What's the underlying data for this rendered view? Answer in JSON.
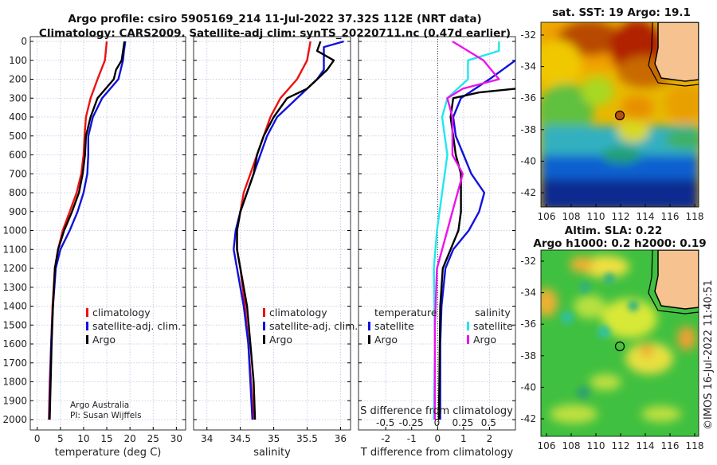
{
  "title_line1": "Argo profile: csiro 5905169_214 11-Jul-2022 37.32S 112E (NRT data)",
  "title_line2": "Climatology: CARS2009. Satellite-adj clim: synTS_20220711.nc (0.47d earlier)",
  "credit_line1": "Argo Australia",
  "credit_line2": "PI: Susan Wijffels",
  "copyright": "©IMOS 16-Jul-2022 11:40:51",
  "colors": {
    "climatology": "#ee1111",
    "satellite": "#1111dd",
    "argo": "#000000",
    "sat_salinity": "#22e6f0",
    "argo_salinity": "#ee11ee"
  },
  "chart_data": [
    {
      "type": "line",
      "id": "temperature",
      "xlabel": "temperature (deg C)",
      "ylabel": "depth",
      "xlim": [
        -1.5,
        32
      ],
      "ylim": [
        2050,
        0
      ],
      "xticks": [
        0,
        5,
        10,
        15,
        20,
        25,
        30
      ],
      "yticks": [
        0,
        100,
        200,
        300,
        400,
        500,
        600,
        700,
        800,
        900,
        1000,
        1100,
        1200,
        1300,
        1400,
        1500,
        1600,
        1700,
        1800,
        1900,
        2000
      ],
      "grid": true,
      "legend": {
        "placement": "lower-right",
        "entries": [
          "climatology",
          "satellite-adj. clim.",
          "Argo"
        ]
      },
      "series": [
        {
          "name": "climatology",
          "color": "climatology",
          "depth": [
            0,
            100,
            200,
            300,
            400,
            500,
            600,
            700,
            800,
            900,
            1000,
            1100,
            1200,
            1400,
            1600,
            1800,
            2000
          ],
          "values": [
            15,
            14.6,
            13,
            11.5,
            10.5,
            10.2,
            10,
            9.5,
            8.5,
            7,
            5.5,
            4.5,
            3.8,
            3.3,
            3,
            2.7,
            2.5
          ]
        },
        {
          "name": "satellite-adj. clim.",
          "color": "satellite",
          "depth": [
            0,
            50,
            100,
            200,
            300,
            400,
            500,
            600,
            700,
            800,
            900,
            1000,
            1100,
            1200,
            1400,
            1600,
            2000
          ],
          "values": [
            19,
            18.7,
            18.5,
            17.5,
            14,
            12,
            11,
            11,
            10.8,
            10,
            8.7,
            7,
            5,
            4,
            3.4,
            3,
            2.6
          ]
        },
        {
          "name": "Argo",
          "color": "argo",
          "depth": [
            0,
            100,
            150,
            200,
            300,
            400,
            500,
            600,
            700,
            800,
            900,
            1000,
            1100,
            1200,
            1400,
            1600,
            1800,
            2000
          ],
          "values": [
            18.8,
            18.2,
            17,
            16.5,
            13,
            11.5,
            10.5,
            10.3,
            9.8,
            9,
            7.5,
            5.8,
            4.5,
            3.8,
            3.4,
            3.1,
            2.9,
            2.7
          ]
        }
      ]
    },
    {
      "type": "line",
      "id": "salinity",
      "xlabel": "salinity",
      "xlim": [
        33.8,
        36.15
      ],
      "ylim": [
        2050,
        0
      ],
      "xticks": [
        34,
        34.5,
        35,
        35.5,
        36
      ],
      "xticklabels": [
        "34",
        "34.5",
        "35",
        "35.5",
        "36"
      ],
      "grid": true,
      "legend": {
        "placement": "lower-right",
        "entries": [
          "climatology",
          "satellite-adj. clim.",
          "Argo"
        ]
      },
      "series": [
        {
          "name": "climatology",
          "color": "climatology",
          "depth": [
            0,
            100,
            200,
            300,
            400,
            500,
            600,
            700,
            800,
            900,
            1000,
            1100,
            1200,
            1400,
            1600,
            1800,
            2000
          ],
          "values": [
            35.55,
            35.5,
            35.35,
            35.1,
            34.95,
            34.85,
            34.75,
            34.65,
            34.55,
            34.5,
            34.45,
            34.45,
            34.5,
            34.57,
            34.62,
            34.66,
            34.7
          ]
        },
        {
          "name": "satellite-adj. clim.",
          "color": "satellite",
          "depth": [
            0,
            30,
            100,
            150,
            200,
            300,
            400,
            500,
            600,
            700,
            800,
            900,
            1000,
            1100,
            1200,
            1400,
            1600,
            2000
          ],
          "values": [
            36.05,
            35.75,
            35.75,
            35.75,
            35.65,
            35.35,
            35.05,
            34.9,
            34.8,
            34.7,
            34.6,
            34.5,
            34.43,
            34.4,
            34.45,
            34.55,
            34.62,
            34.68
          ]
        },
        {
          "name": "Argo",
          "color": "argo",
          "depth": [
            0,
            50,
            100,
            150,
            250,
            300,
            400,
            500,
            600,
            700,
            800,
            900,
            1000,
            1100,
            1200,
            1400,
            1600,
            1800,
            2000
          ],
          "values": [
            35.7,
            35.65,
            35.9,
            35.8,
            35.5,
            35.2,
            35.0,
            34.85,
            34.75,
            34.7,
            34.6,
            34.5,
            34.45,
            34.45,
            34.5,
            34.6,
            34.65,
            34.7,
            34.72
          ]
        }
      ]
    },
    {
      "type": "line",
      "id": "difference",
      "xlabel": "T difference from climatology",
      "x2label": "S difference from climatology",
      "xlim": [
        -3.05,
        3.0
      ],
      "x2lim": [
        -0.76,
        0.76
      ],
      "ylim": [
        2050,
        0
      ],
      "xticks": [
        -2,
        -1,
        0,
        1,
        2
      ],
      "x2ticks": [
        -0.5,
        -0.25,
        0,
        0.25,
        0.5
      ],
      "x2ticklabels": [
        "-0.5",
        "-0.25",
        "0",
        "0.25",
        "0.5"
      ],
      "grid": true,
      "legend": {
        "placement": "lower",
        "temperature_title": "temperature",
        "salinity_title": "salinity",
        "entries": [
          "satellite",
          "Argo",
          "satellite",
          "Argo"
        ]
      },
      "series": [
        {
          "name": "satellite",
          "quantity": "T",
          "color": "satellite",
          "depth": [
            100,
            200,
            300,
            400,
            500,
            600,
            700,
            800,
            900,
            1000,
            1100,
            1200,
            1400,
            1600,
            2000
          ],
          "values": [
            3.0,
            2.0,
            0.9,
            0.6,
            0.7,
            1.0,
            1.3,
            1.8,
            1.6,
            1.2,
            0.6,
            0.3,
            0.15,
            0.1,
            0.1
          ]
        },
        {
          "name": "Argo",
          "quantity": "T",
          "color": "argo",
          "depth": [
            250,
            270,
            300,
            400,
            500,
            600,
            700,
            800,
            900,
            1000,
            1100,
            1200,
            1400,
            2000
          ],
          "values": [
            3.0,
            1.6,
            0.6,
            0.5,
            0.6,
            0.7,
            0.9,
            0.9,
            0.9,
            0.8,
            0.5,
            0.2,
            0.1,
            0.05
          ]
        },
        {
          "name": "satellite",
          "quantity": "S",
          "color": "sat_salinity",
          "depth": [
            0,
            50,
            100,
            200,
            300,
            400,
            600,
            800,
            1000,
            1200,
            1600,
            2000
          ],
          "values": [
            0.6,
            0.6,
            0.3,
            0.3,
            0.1,
            0.05,
            0.1,
            0.05,
            0.0,
            -0.03,
            -0.02,
            -0.03
          ]
        },
        {
          "name": "Argo",
          "quantity": "S",
          "color": "argo_salinity",
          "depth": [
            0,
            50,
            100,
            200,
            250,
            300,
            400,
            500,
            600,
            700,
            800,
            900,
            1000,
            1100,
            1200,
            1500,
            2000
          ],
          "values": [
            0.15,
            0.3,
            0.45,
            0.6,
            0.25,
            0.1,
            0.15,
            0.15,
            0.15,
            0.25,
            0.2,
            0.15,
            0.1,
            0.05,
            0.0,
            -0.02,
            -0.02
          ]
        }
      ]
    },
    {
      "type": "heatmap",
      "id": "sst_map",
      "title": "sat. SST: 19 Argo: 19.1",
      "xlim": [
        105.6,
        118.4
      ],
      "ylim": [
        -43.2,
        -31.3
      ],
      "xticks": [
        106,
        108,
        110,
        112,
        114,
        116,
        118
      ],
      "yticks": [
        -32,
        -34,
        -36,
        -38,
        -40,
        -42
      ],
      "float_position": [
        112,
        -37.32
      ]
    },
    {
      "type": "heatmap",
      "id": "sla_map",
      "title_line1": "Altim. SLA: 0.22",
      "title_line2": "Argo h1000: 0.2 h2000: 0.19",
      "xlim": [
        105.6,
        118.4
      ],
      "ylim": [
        -43.2,
        -31.3
      ],
      "xticks": [
        106,
        108,
        110,
        112,
        114,
        116,
        118
      ],
      "yticks": [
        -32,
        -34,
        -36,
        -38,
        -40,
        -42
      ],
      "float_position": [
        112,
        -37.32
      ]
    }
  ]
}
